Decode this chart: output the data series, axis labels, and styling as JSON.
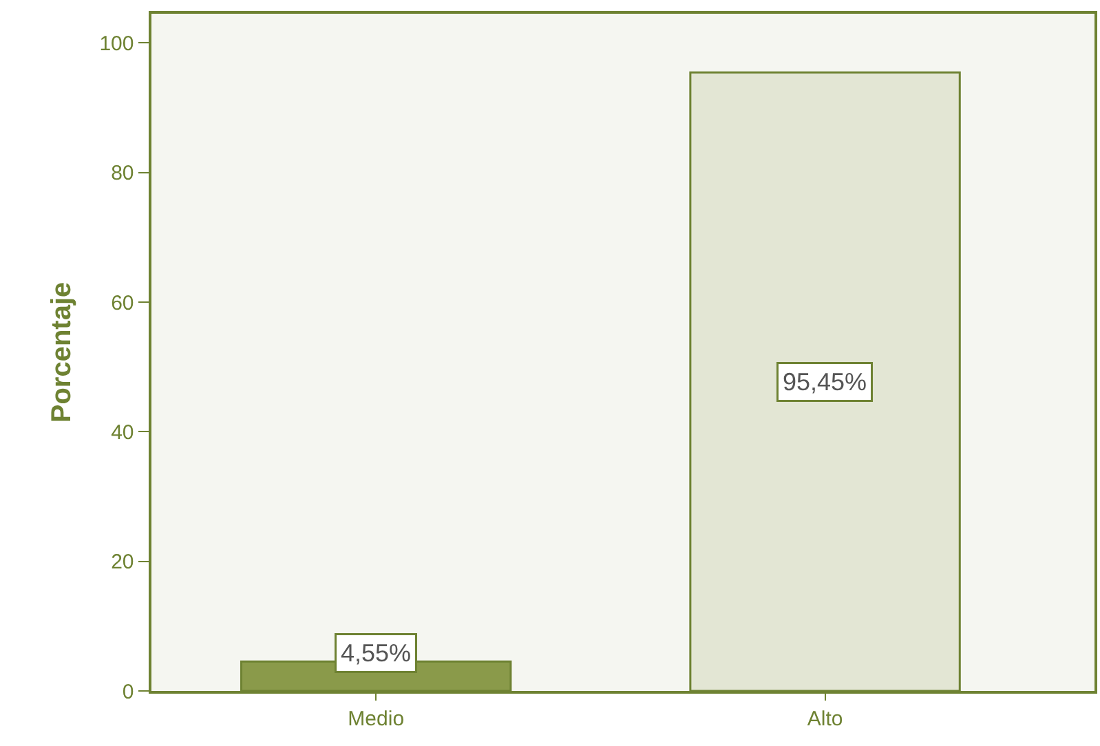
{
  "chart_data": {
    "type": "bar",
    "ylabel": "Porcentaje",
    "categories": [
      "Medio",
      "Alto"
    ],
    "values": [
      4.55,
      95.45
    ],
    "value_labels": [
      "4,55%",
      "95,45%"
    ],
    "colors": [
      "#8a9a4a",
      "#e3e6d4"
    ],
    "ylim": [
      0,
      104.5
    ],
    "yticks": [
      0,
      20,
      40,
      60,
      80,
      100
    ],
    "grid": false,
    "legend": false
  }
}
